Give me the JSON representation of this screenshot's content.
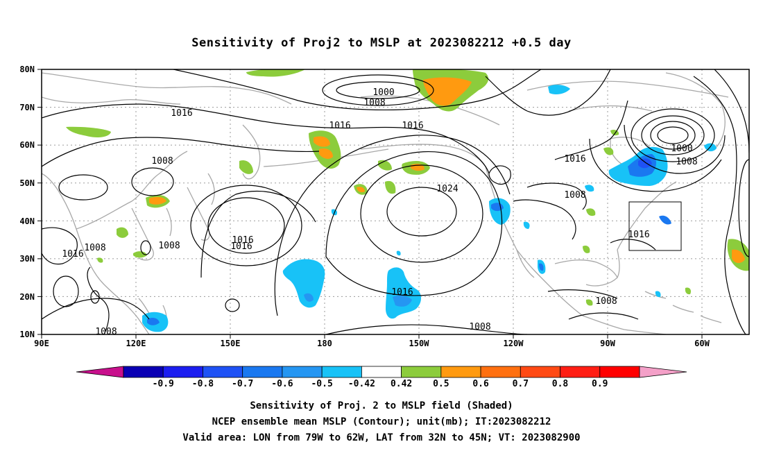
{
  "title": "Sensitivity of Proj2 to MSLP at 2023082212 +0.5 day",
  "map": {
    "lat_labels": [
      "80N",
      "70N",
      "60N",
      "50N",
      "40N",
      "30N",
      "20N",
      "10N"
    ],
    "lon_labels": [
      "90E",
      "120E",
      "150E",
      "180",
      "150W",
      "120W",
      "90W",
      "60W"
    ],
    "contour_labels": [
      "1016",
      "1008",
      "1000",
      "1008",
      "1016",
      "1016",
      "1024",
      "1016",
      "1008",
      "1000",
      "1008",
      "1016",
      "1016",
      "1008",
      "1016",
      "1008",
      "1016",
      "1016",
      "1008",
      "1008",
      "1008",
      "1008"
    ],
    "valid_box": "79W-62W, 32N-45N"
  },
  "colorbar": {
    "labels": [
      "-0.9",
      "-0.8",
      "-0.7",
      "-0.6",
      "-0.5",
      "-0.42",
      "0.42",
      "0.5",
      "0.6",
      "0.7",
      "0.8",
      "0.9"
    ],
    "colors": [
      "#c8108c",
      "#0a00b4",
      "#1c1ef0",
      "#1f52f5",
      "#1a78f0",
      "#2596f2",
      "#18c2f7",
      "#ffffff",
      "#8ccc3c",
      "#ff9a10",
      "#ff7010",
      "#ff4a14",
      "#ff1e14",
      "#ff0000",
      "#f4a0c8"
    ]
  },
  "footer": {
    "line1": "Sensitivity of Proj. 2 to MSLP field (Shaded)",
    "line2": "NCEP ensemble mean MSLP (Contour); unit(mb); IT:2023082212",
    "line3": "Valid area: LON from 79W to 62W, LAT from 32N to 45N; VT: 2023082900"
  }
}
